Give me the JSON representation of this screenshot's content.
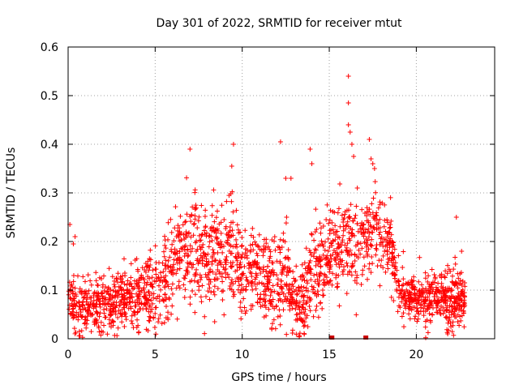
{
  "chart_data": {
    "type": "scatter",
    "title": "Day 301 of 2022, SRMTID for receiver mtut",
    "xlabel": "GPS time / hours",
    "ylabel": "SRMTID / TECUs",
    "xlim": [
      0,
      24.5
    ],
    "ylim": [
      0,
      0.6
    ],
    "xticks": [
      0,
      5,
      10,
      15,
      20
    ],
    "yticks": [
      0,
      0.1,
      0.2,
      0.3,
      0.4,
      0.5,
      0.6
    ],
    "xtick_labels": [
      "0",
      "5",
      "10",
      "15",
      "20"
    ],
    "ytick_labels": [
      "0",
      "0.1",
      "0.2",
      "0.3",
      "0.4",
      "0.5",
      "0.6"
    ],
    "grid": true,
    "marker": "+",
    "color": "#ff0000",
    "series_envelope": {
      "x": [
        0,
        1,
        2,
        3,
        4,
        5,
        5.8,
        6.5,
        7,
        8,
        9,
        9.5,
        10,
        11,
        12,
        12.5,
        13,
        13.5,
        14,
        15,
        15.5,
        16,
        16.5,
        17,
        17.5,
        18,
        18.5,
        19,
        20,
        21,
        22,
        22.8
      ],
      "center": [
        0.07,
        0.065,
        0.07,
        0.085,
        0.09,
        0.1,
        0.13,
        0.18,
        0.19,
        0.18,
        0.17,
        0.19,
        0.14,
        0.13,
        0.12,
        0.13,
        0.08,
        0.06,
        0.13,
        0.16,
        0.18,
        0.2,
        0.19,
        0.2,
        0.23,
        0.22,
        0.2,
        0.1,
        0.08,
        0.08,
        0.085,
        0.08
      ],
      "spread": [
        0.04,
        0.04,
        0.04,
        0.04,
        0.045,
        0.05,
        0.06,
        0.07,
        0.075,
        0.08,
        0.08,
        0.08,
        0.06,
        0.06,
        0.06,
        0.07,
        0.06,
        0.05,
        0.07,
        0.06,
        0.06,
        0.06,
        0.06,
        0.06,
        0.06,
        0.06,
        0.05,
        0.04,
        0.035,
        0.035,
        0.04,
        0.04
      ]
    },
    "notable_points": [
      {
        "x": 0.1,
        "y": 0.235
      },
      {
        "x": 0.3,
        "y": 0.195
      },
      {
        "x": 0.4,
        "y": 0.21
      },
      {
        "x": 7.0,
        "y": 0.39
      },
      {
        "x": 9.5,
        "y": 0.4
      },
      {
        "x": 9.4,
        "y": 0.355
      },
      {
        "x": 12.2,
        "y": 0.405
      },
      {
        "x": 12.5,
        "y": 0.33
      },
      {
        "x": 12.8,
        "y": 0.33
      },
      {
        "x": 13.9,
        "y": 0.39
      },
      {
        "x": 14.0,
        "y": 0.36
      },
      {
        "x": 16.1,
        "y": 0.54
      },
      {
        "x": 16.1,
        "y": 0.485
      },
      {
        "x": 16.1,
        "y": 0.44
      },
      {
        "x": 16.2,
        "y": 0.425
      },
      {
        "x": 16.3,
        "y": 0.4
      },
      {
        "x": 16.4,
        "y": 0.375
      },
      {
        "x": 17.3,
        "y": 0.41
      },
      {
        "x": 17.4,
        "y": 0.37
      },
      {
        "x": 17.5,
        "y": 0.36
      },
      {
        "x": 17.6,
        "y": 0.35
      },
      {
        "x": 22.3,
        "y": 0.25
      },
      {
        "x": 22.6,
        "y": 0.18
      }
    ],
    "zero_markers": [
      {
        "x": 15.15,
        "y": 0
      },
      {
        "x": 17.1,
        "y": 0
      }
    ],
    "n_points": 2200
  }
}
